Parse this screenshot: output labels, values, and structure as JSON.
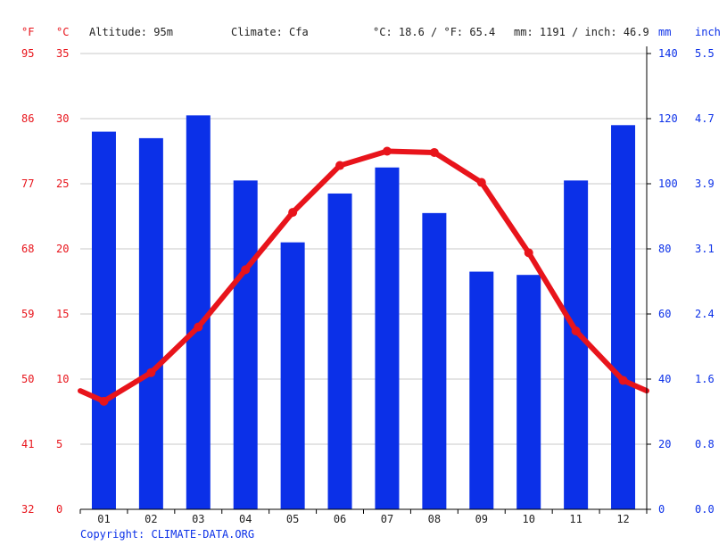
{
  "header": {
    "f_unit": "°F",
    "c_unit": "°C",
    "altitude": "Altitude: 95m",
    "climate": "Climate: Cfa",
    "avg_temp": "°C: 18.6 / °F: 65.4",
    "precip_total": "mm: 1191 / inch: 46.9",
    "mm_unit": "mm",
    "inch_unit": "inch"
  },
  "footer": {
    "copyright": "Copyright: CLIMATE-DATA.ORG"
  },
  "colors": {
    "temperature": "#e8141b",
    "precipitation": "#0b30e8",
    "grid": "#c8c8c8",
    "text": "#222222"
  },
  "chart_data": {
    "type": "bar",
    "categories": [
      "01",
      "02",
      "03",
      "04",
      "05",
      "06",
      "07",
      "08",
      "09",
      "10",
      "11",
      "12"
    ],
    "series": [
      {
        "type": "bar",
        "axis": "right",
        "unit": "mm",
        "values": [
          116,
          114,
          121,
          101,
          82,
          97,
          105,
          91,
          73,
          72,
          101,
          118
        ]
      },
      {
        "type": "line",
        "axis": "left",
        "unit": "°C",
        "values": [
          8.3,
          10.5,
          14.0,
          18.4,
          22.8,
          26.4,
          27.5,
          27.4,
          25.1,
          19.7,
          13.7,
          9.9
        ],
        "edge_start": 9.1,
        "edge_end": 9.1
      }
    ],
    "y_left_c": {
      "ticks": [
        "0",
        "5",
        "10",
        "15",
        "20",
        "25",
        "30",
        "35"
      ],
      "ylim": [
        0,
        35
      ]
    },
    "y_left_f": {
      "ticks": [
        "32",
        "41",
        "50",
        "59",
        "68",
        "77",
        "86",
        "95"
      ]
    },
    "y_right_mm": {
      "ticks": [
        "0",
        "20",
        "40",
        "60",
        "80",
        "100",
        "120",
        "140"
      ],
      "ylim": [
        0,
        140
      ]
    },
    "y_right_inch": {
      "ticks": [
        "0.0",
        "0.8",
        "1.6",
        "2.4",
        "3.1",
        "3.9",
        "4.7",
        "5.5"
      ]
    },
    "grid": true
  }
}
